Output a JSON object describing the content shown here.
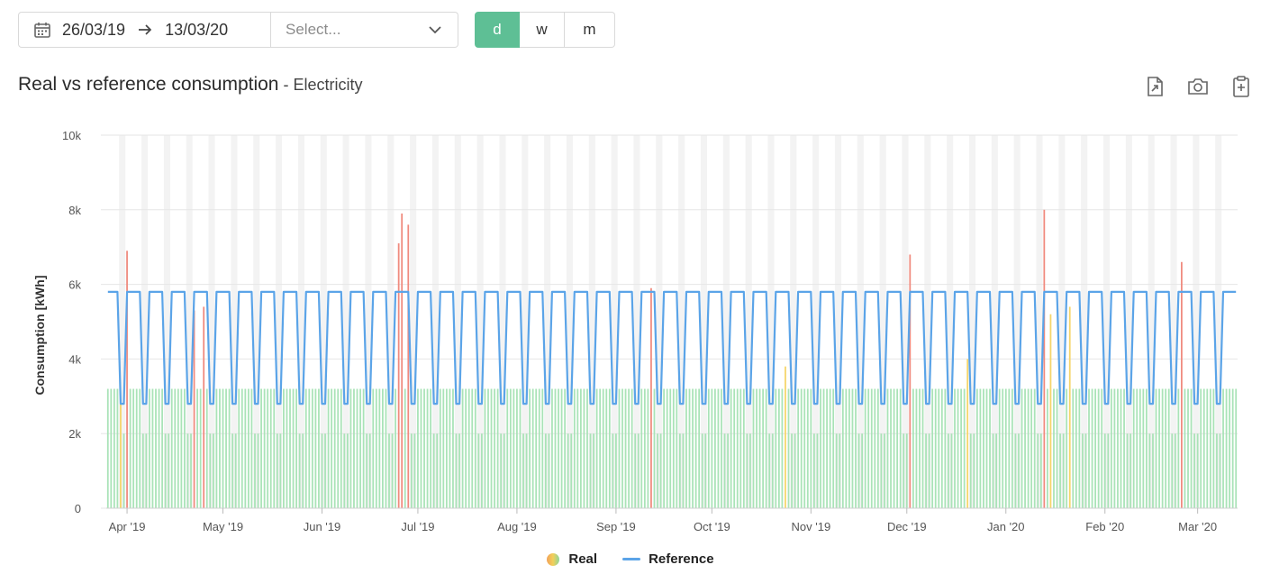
{
  "toolbar": {
    "date_from": "26/03/19",
    "date_to": "13/03/20",
    "select_placeholder": "Select...",
    "granularity": [
      {
        "label": "d",
        "active": true
      },
      {
        "label": "w",
        "active": false
      },
      {
        "label": "m",
        "active": false
      }
    ]
  },
  "title": {
    "main": "Real vs reference consumption",
    "separator": " - ",
    "sub": "Electricity"
  },
  "icons": [
    "export-icon",
    "camera-icon",
    "clipboard-icon"
  ],
  "legend": {
    "real": "Real",
    "reference": "Reference"
  },
  "colors": {
    "accent": "#5ebf95",
    "real_bar": "#a9e3b7",
    "real_bar_over": "#f08a7e",
    "real_bar_near": "#f5d56a",
    "reference_line": "#5ba4e8",
    "weekend_band": "#f3f3f3"
  },
  "chart_data": {
    "type": "bar",
    "title": "Real vs reference consumption",
    "subtitle": "Electricity",
    "ylabel": "Consumption [kWh]",
    "ylim": [
      0,
      10000
    ],
    "yticks": [
      {
        "value": 0,
        "label": "0"
      },
      {
        "value": 2000,
        "label": "2k"
      },
      {
        "value": 4000,
        "label": "4k"
      },
      {
        "value": 6000,
        "label": "6k"
      },
      {
        "value": 8000,
        "label": "8k"
      },
      {
        "value": 10000,
        "label": "10k"
      }
    ],
    "x_start": "2019-03-26",
    "x_end": "2020-03-13",
    "xticks": [
      {
        "date": "2019-04-01",
        "label": "Apr '19"
      },
      {
        "date": "2019-05-01",
        "label": "May '19"
      },
      {
        "date": "2019-06-01",
        "label": "Jun '19"
      },
      {
        "date": "2019-07-01",
        "label": "Jul '19"
      },
      {
        "date": "2019-08-01",
        "label": "Aug '19"
      },
      {
        "date": "2019-09-01",
        "label": "Sep '19"
      },
      {
        "date": "2019-10-01",
        "label": "Oct '19"
      },
      {
        "date": "2019-11-01",
        "label": "Nov '19"
      },
      {
        "date": "2019-12-01",
        "label": "Dec '19"
      },
      {
        "date": "2020-01-01",
        "label": "Jan '20"
      },
      {
        "date": "2020-02-01",
        "label": "Feb '20"
      },
      {
        "date": "2020-03-01",
        "label": "Mar '20"
      }
    ],
    "weekend_bands": true,
    "series": [
      {
        "name": "Real",
        "kind": "bar",
        "pattern": {
          "weekday": 3200,
          "weekend": 2000
        },
        "exceeding_dates": [
          {
            "date": "2019-04-01",
            "value": 6900
          },
          {
            "date": "2019-04-22",
            "value": 5300
          },
          {
            "date": "2019-04-25",
            "value": 5400
          },
          {
            "date": "2019-06-25",
            "value": 7100
          },
          {
            "date": "2019-06-26",
            "value": 7900
          },
          {
            "date": "2019-06-28",
            "value": 7600
          },
          {
            "date": "2019-09-12",
            "value": 5900
          },
          {
            "date": "2019-12-02",
            "value": 6800
          },
          {
            "date": "2020-01-13",
            "value": 8000
          },
          {
            "date": "2020-02-25",
            "value": 6600
          }
        ],
        "near_dates": [
          {
            "date": "2019-03-30",
            "value": 2900
          },
          {
            "date": "2019-10-24",
            "value": 3800
          },
          {
            "date": "2019-12-20",
            "value": 4000
          },
          {
            "date": "2020-01-15",
            "value": 5200
          },
          {
            "date": "2020-01-21",
            "value": 5400
          }
        ]
      },
      {
        "name": "Reference",
        "kind": "line",
        "pattern": {
          "weekday": 5800,
          "weekend": 2800
        }
      }
    ]
  }
}
